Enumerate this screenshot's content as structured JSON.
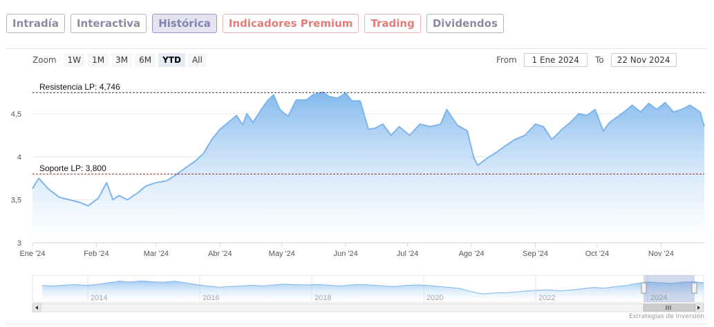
{
  "tabs": [
    {
      "label": "Intradía",
      "state": "normal"
    },
    {
      "label": "Interactiva",
      "state": "normal"
    },
    {
      "label": "Histórica",
      "state": "active"
    },
    {
      "label": "Indicadores Premium",
      "state": "premium"
    },
    {
      "label": "Trading",
      "state": "premium"
    },
    {
      "label": "Dividendos",
      "state": "normal"
    }
  ],
  "zoom": {
    "label": "Zoom",
    "buttons": [
      "1W",
      "1M",
      "3M",
      "6M",
      "YTD",
      "All"
    ],
    "selected": "YTD"
  },
  "range": {
    "from_label": "From",
    "from_value": "1 Ene 2024",
    "to_label": "To",
    "to_value": "22 Nov 2024"
  },
  "credit": "Estrategias de Inversión",
  "colors": {
    "line": "#7cb5ec",
    "area_top": "#7cb5ec",
    "area_bottom": "#ffffff",
    "resistance_line": "#333333",
    "support_line": "#8b2323"
  },
  "chart_data": {
    "type": "area",
    "title": "",
    "xlabel": "",
    "ylabel": "",
    "xlim": [
      "2024-01-01",
      "2024-11-22"
    ],
    "ylim": [
      3,
      4.9
    ],
    "y_ticks": [
      3,
      3.5,
      4,
      4.5
    ],
    "y_tick_labels": [
      "3",
      "3,5",
      "4",
      "4,5"
    ],
    "x_ticks": [
      "2024-01-01",
      "2024-02-01",
      "2024-03-01",
      "2024-04-01",
      "2024-05-01",
      "2024-06-01",
      "2024-07-01",
      "2024-08-01",
      "2024-09-01",
      "2024-10-01",
      "2024-11-01"
    ],
    "x_tick_labels": [
      "Ene '24",
      "Feb '24",
      "Mar '24",
      "Abr '24",
      "May '24",
      "Jun '24",
      "Jul '24",
      "Ago '24",
      "Sep '24",
      "Oct '24",
      "Nov '24"
    ],
    "grid": true,
    "legend": "none",
    "series": [
      {
        "x": [
          "2024-01-01",
          "2024-01-04",
          "2024-01-09",
          "2024-01-14",
          "2024-01-19",
          "2024-01-24",
          "2024-01-28",
          "2024-02-02",
          "2024-02-06",
          "2024-02-09",
          "2024-02-12",
          "2024-02-16",
          "2024-02-21",
          "2024-02-25",
          "2024-03-01",
          "2024-03-06",
          "2024-03-10",
          "2024-03-14",
          "2024-03-17",
          "2024-03-20",
          "2024-03-24",
          "2024-03-28",
          "2024-04-01",
          "2024-04-05",
          "2024-04-09",
          "2024-04-12",
          "2024-04-14",
          "2024-04-17",
          "2024-04-21",
          "2024-04-24",
          "2024-04-27",
          "2024-04-30",
          "2024-05-04",
          "2024-05-08",
          "2024-05-13",
          "2024-05-16",
          "2024-05-21",
          "2024-05-24",
          "2024-05-28",
          "2024-06-01",
          "2024-06-04",
          "2024-06-08",
          "2024-06-12",
          "2024-06-15",
          "2024-06-19",
          "2024-06-23",
          "2024-06-27",
          "2024-07-02",
          "2024-07-07",
          "2024-07-12",
          "2024-07-17",
          "2024-07-20",
          "2024-07-25",
          "2024-07-30",
          "2024-08-02",
          "2024-08-04",
          "2024-08-09",
          "2024-08-13",
          "2024-08-17",
          "2024-08-22",
          "2024-08-27",
          "2024-09-01",
          "2024-09-05",
          "2024-09-09",
          "2024-09-14",
          "2024-09-18",
          "2024-09-22",
          "2024-09-26",
          "2024-09-30",
          "2024-10-04",
          "2024-10-07",
          "2024-10-10",
          "2024-10-14",
          "2024-10-18",
          "2024-10-22",
          "2024-10-26",
          "2024-10-30",
          "2024-11-03",
          "2024-11-07",
          "2024-11-11",
          "2024-11-15",
          "2024-11-20",
          "2024-11-22"
        ],
        "values": [
          3.63,
          3.75,
          3.62,
          3.53,
          3.5,
          3.47,
          3.43,
          3.52,
          3.7,
          3.5,
          3.55,
          3.5,
          3.58,
          3.66,
          3.7,
          3.72,
          3.78,
          3.85,
          3.9,
          3.95,
          4.04,
          4.2,
          4.32,
          4.4,
          4.48,
          4.37,
          4.5,
          4.4,
          4.55,
          4.65,
          4.72,
          4.55,
          4.47,
          4.66,
          4.66,
          4.72,
          4.75,
          4.7,
          4.68,
          4.74,
          4.65,
          4.65,
          4.32,
          4.33,
          4.38,
          4.25,
          4.35,
          4.25,
          4.38,
          4.35,
          4.38,
          4.55,
          4.37,
          4.3,
          4.0,
          3.9,
          3.99,
          4.05,
          4.12,
          4.2,
          4.25,
          4.38,
          4.35,
          4.2,
          4.32,
          4.4,
          4.5,
          4.48,
          4.55,
          4.3,
          4.4,
          4.45,
          4.52,
          4.6,
          4.52,
          4.62,
          4.55,
          4.63,
          4.52,
          4.55,
          4.6,
          4.52,
          4.35
        ]
      }
    ],
    "annotations": [
      {
        "label": "Resistencia LP: 4,746",
        "value": 4.746
      },
      {
        "label": "Soporte LP: 3,800",
        "value": 3.8
      }
    ],
    "navigator": {
      "year_labels": [
        "2014",
        "2016",
        "2018",
        "2020",
        "2022",
        "2024"
      ]
    }
  }
}
